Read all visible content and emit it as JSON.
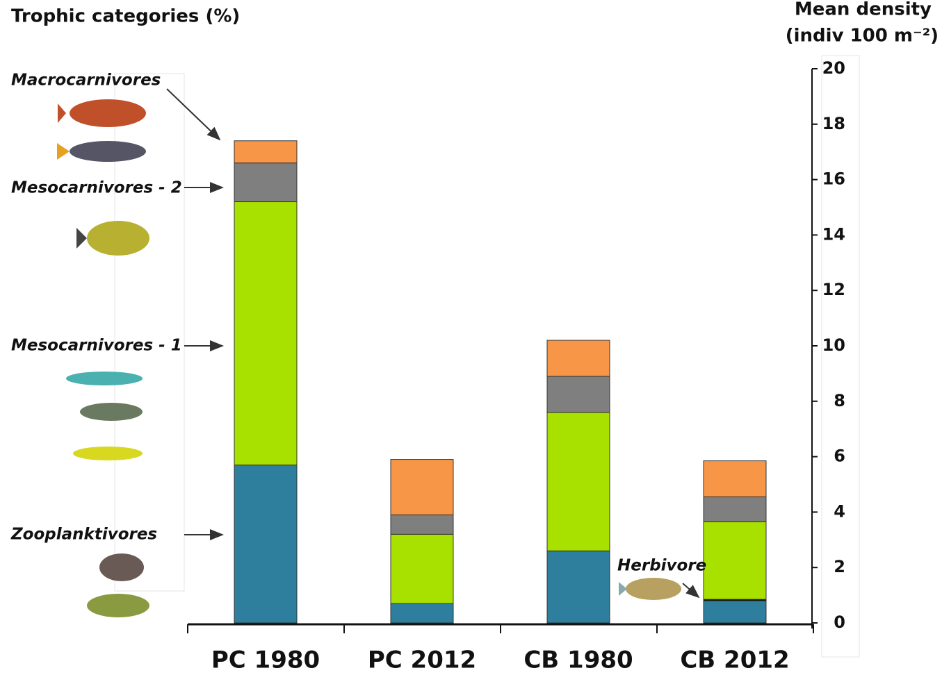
{
  "chart_data": {
    "type": "stacked-bar",
    "title": "Trophic categories (%)",
    "y_label": "Mean density",
    "y_unit": "(indiv 100 m⁻²)",
    "categories": [
      "PC 1980",
      "PC 2012",
      "CB 1980",
      "CB 2012"
    ],
    "series": [
      {
        "name": "Zooplanktivores",
        "color": "#2e7f9e",
        "values": [
          5.7,
          0.7,
          2.6,
          0.8
        ]
      },
      {
        "name": "Herbivore",
        "color": "#000000",
        "values": [
          null,
          null,
          null,
          0.05
        ]
      },
      {
        "name": "Mesocarnivores - 1",
        "color": "#a8e000",
        "values": [
          9.5,
          2.5,
          5.0,
          2.8
        ]
      },
      {
        "name": "Mesocarnivores - 2",
        "color": "#7f7f7f",
        "values": [
          1.4,
          0.7,
          1.3,
          0.9
        ]
      },
      {
        "name": "Macrocarnivores",
        "color": "#f79646",
        "values": [
          0.8,
          2.0,
          1.3,
          1.3
        ]
      }
    ],
    "ylim": [
      0,
      20
    ],
    "yticks": [
      0,
      2,
      4,
      6,
      8,
      10,
      12,
      14,
      16,
      18,
      20
    ]
  }
}
